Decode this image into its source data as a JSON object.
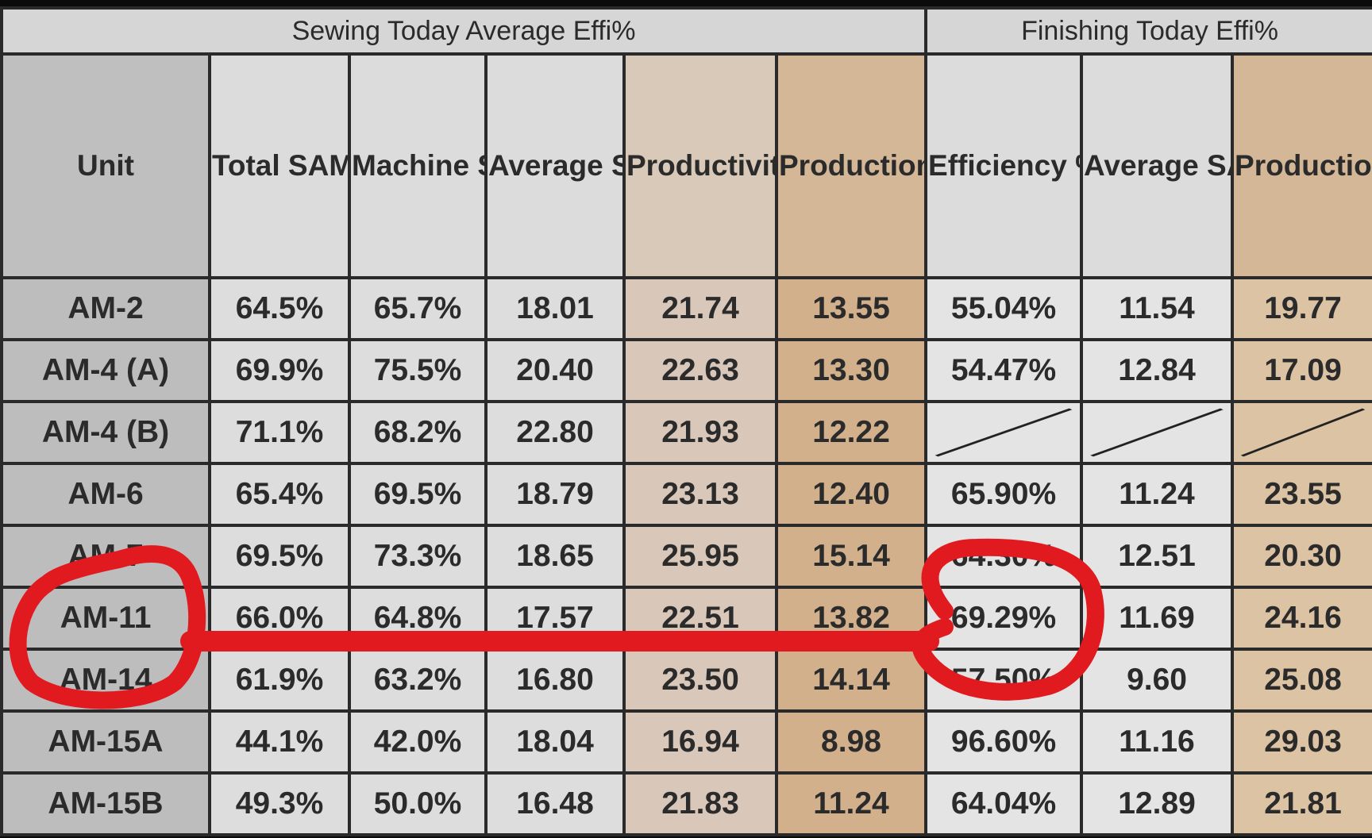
{
  "groups": {
    "sewing": "Sewing Today Average Effi%",
    "finishing": "Finishing Today Effi%"
  },
  "headers": {
    "unit": "Unit",
    "total_sam": "Total SAM Base Effi%",
    "machine_sam": "Machine SAM Base Effi%",
    "avg_sam": "Average SAM",
    "productivity": "Productivity Per Running Sewing Machine",
    "prod_sewing": "Production Per Sewing Employee With OT Head Count",
    "efficiency": "Efficiency %",
    "fin_avg_sam": "Average SAM",
    "prod_finishing": "Production Per Finishing Employee With OT Head Count"
  },
  "rows": [
    [
      "AM-2",
      "64.5%",
      "65.7%",
      "18.01",
      "21.74",
      "13.55",
      "55.04%",
      "11.54",
      "19.77"
    ],
    [
      "AM-4 (A)",
      "69.9%",
      "75.5%",
      "20.40",
      "22.63",
      "13.30",
      "54.47%",
      "12.84",
      "17.09"
    ],
    [
      "AM-4 (B)",
      "71.1%",
      "68.2%",
      "22.80",
      "21.93",
      "12.22",
      "",
      "",
      ""
    ],
    [
      "AM-6",
      "65.4%",
      "69.5%",
      "18.79",
      "23.13",
      "12.40",
      "65.90%",
      "11.24",
      "23.55"
    ],
    [
      "AM-7",
      "69.5%",
      "73.3%",
      "18.65",
      "25.95",
      "15.14",
      "64.30%",
      "12.51",
      "20.30"
    ],
    [
      "AM-11",
      "66.0%",
      "64.8%",
      "17.57",
      "22.51",
      "13.82",
      "69.29%",
      "11.69",
      "24.16"
    ],
    [
      "AM-14",
      "61.9%",
      "63.2%",
      "16.80",
      "23.50",
      "14.14",
      "57.50%",
      "9.60",
      "25.08"
    ],
    [
      "AM-15A",
      "44.1%",
      "42.0%",
      "18.04",
      "16.94",
      "8.98",
      "96.60%",
      "11.16",
      "29.03"
    ],
    [
      "AM-15B",
      "49.3%",
      "50.0%",
      "16.48",
      "21.83",
      "11.24",
      "64.04%",
      "12.89",
      "21.81"
    ]
  ],
  "colors": {
    "annotation": "#e01a1f",
    "tan": "#d2b08c",
    "grey": "#dddddd"
  }
}
